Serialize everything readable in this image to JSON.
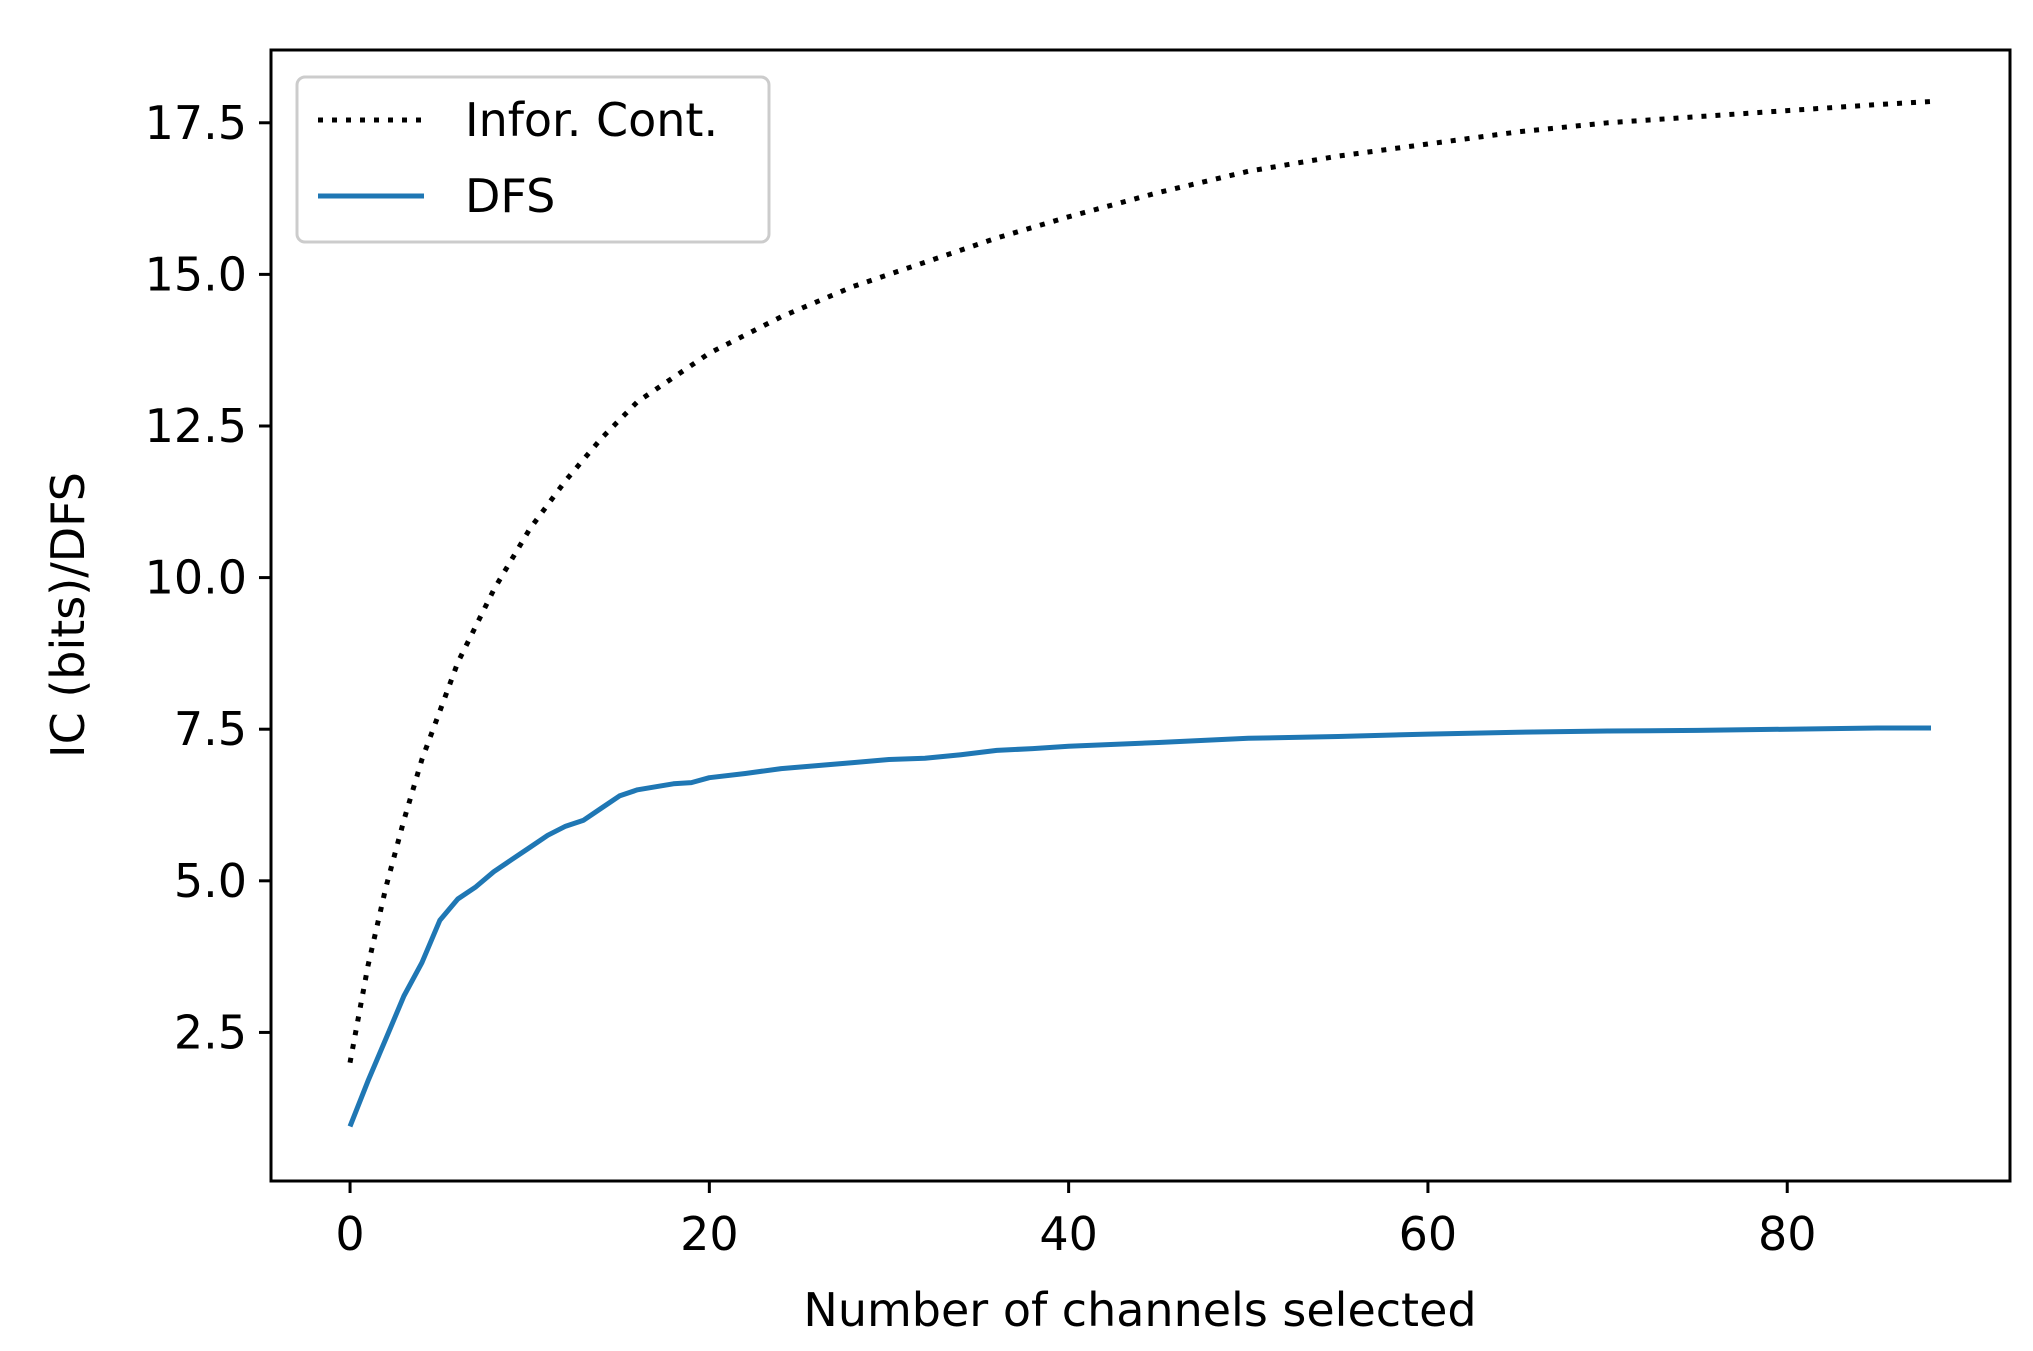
{
  "chart_data": {
    "type": "line",
    "title": "",
    "xlabel": "Number of channels selected",
    "ylabel": "IC (bits)/DFS",
    "xlim": [
      -4.4,
      92.4
    ],
    "ylim": [
      0.05,
      18.7
    ],
    "xticks": [
      0,
      20,
      40,
      60,
      80
    ],
    "xtick_labels": [
      "0",
      "20",
      "40",
      "60",
      "80"
    ],
    "yticks": [
      2.5,
      5.0,
      7.5,
      10.0,
      12.5,
      15.0,
      17.5
    ],
    "ytick_labels": [
      "2.5",
      "5.0",
      "7.5",
      "10.0",
      "12.5",
      "15.0",
      "17.5"
    ],
    "grid": false,
    "legend_position": "top-left",
    "series": [
      {
        "name": "Infor. Cont.",
        "color": "#000000",
        "style": "dotted",
        "x": [
          0,
          1,
          2,
          3,
          4,
          5,
          6,
          7,
          8,
          9,
          10,
          12,
          14,
          16,
          18,
          20,
          24,
          28,
          32,
          36,
          40,
          45,
          50,
          55,
          60,
          65,
          70,
          75,
          80,
          85,
          88
        ],
        "y": [
          2.0,
          3.6,
          4.9,
          6.0,
          7.0,
          7.8,
          8.6,
          9.2,
          9.8,
          10.3,
          10.8,
          11.6,
          12.3,
          12.9,
          13.3,
          13.7,
          14.3,
          14.8,
          15.2,
          15.6,
          15.95,
          16.35,
          16.7,
          16.95,
          17.15,
          17.35,
          17.5,
          17.6,
          17.7,
          17.8,
          17.85
        ]
      },
      {
        "name": "DFS",
        "color": "#1f77b4",
        "style": "solid",
        "x": [
          0,
          1,
          2,
          3,
          4,
          5,
          6,
          7,
          8,
          9,
          10,
          11,
          12,
          13,
          14,
          15,
          16,
          17,
          18,
          19,
          20,
          22,
          24,
          26,
          28,
          30,
          32,
          34,
          36,
          38,
          40,
          45,
          50,
          55,
          60,
          65,
          70,
          75,
          80,
          85,
          88
        ],
        "y": [
          0.95,
          1.7,
          2.4,
          3.1,
          3.65,
          4.35,
          4.7,
          4.9,
          5.15,
          5.35,
          5.55,
          5.75,
          5.9,
          6.0,
          6.2,
          6.4,
          6.5,
          6.55,
          6.6,
          6.62,
          6.7,
          6.77,
          6.85,
          6.9,
          6.95,
          7.0,
          7.02,
          7.08,
          7.15,
          7.18,
          7.22,
          7.28,
          7.35,
          7.38,
          7.42,
          7.45,
          7.47,
          7.48,
          7.5,
          7.52,
          7.52
        ]
      }
    ]
  }
}
